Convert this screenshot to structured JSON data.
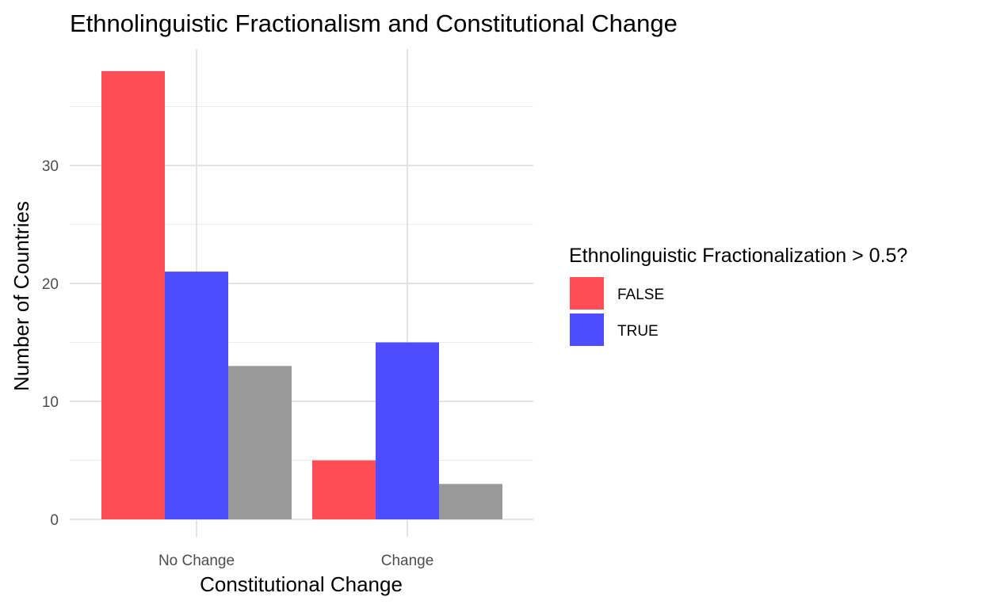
{
  "chart_data": {
    "type": "bar",
    "title": "Ethnolinguistic Fractionalism and Constitutional Change",
    "xlabel": "Constitutional Change",
    "ylabel": "Number of Countries",
    "categories": [
      "No Change",
      "Change"
    ],
    "series": [
      {
        "name": "FALSE",
        "color": "#ff4d55",
        "values": [
          38,
          5
        ]
      },
      {
        "name": "TRUE",
        "color": "#4d4dff",
        "values": [
          21,
          15
        ]
      },
      {
        "color": "#999999",
        "values": [
          13,
          3
        ]
      }
    ],
    "ylim": [
      0,
      40
    ],
    "yticks": [
      0,
      10,
      20,
      30
    ],
    "grid": true,
    "legend": {
      "title": "Ethnolinguistic Fractionalization > 0.5?",
      "placement": "right"
    }
  }
}
